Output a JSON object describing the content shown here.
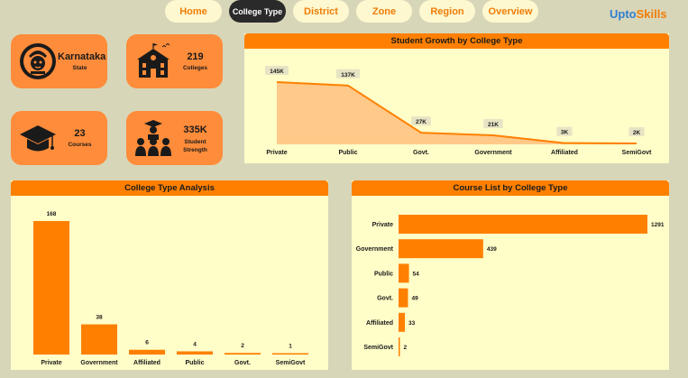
{
  "nav": [
    {
      "label": "Home",
      "active": false
    },
    {
      "label": "College Type",
      "active": true
    },
    {
      "label": "District",
      "active": false
    },
    {
      "label": "Zone",
      "active": false
    },
    {
      "label": "Region",
      "active": false
    },
    {
      "label": "Overview",
      "active": false
    }
  ],
  "brand": {
    "part1": "Upto",
    "part2": "Skills"
  },
  "kpis": {
    "state": {
      "value": "Karnataka",
      "label": "State",
      "icon": "karnataka-emblem-icon"
    },
    "colleges": {
      "value": "219",
      "label": "Colleges",
      "icon": "college-building-icon"
    },
    "courses": {
      "value": "23",
      "label": "Courses",
      "icon": "graduation-cap-icon"
    },
    "students": {
      "value": "335K",
      "label": "Student Strength",
      "icon": "students-group-icon"
    }
  },
  "colors": {
    "accent": "#ff8000",
    "card": "#ff8c3a",
    "panel": "#fffdc8",
    "area_fill": "#ffc98a",
    "background": "#d8d6b8"
  },
  "chart_data": [
    {
      "type": "area",
      "title": "Student Growth by College Type",
      "categories": [
        "Private",
        "Public",
        "Govt.",
        "Government",
        "Affiliated",
        "SemiGovt"
      ],
      "values": [
        145000,
        137000,
        27000,
        21000,
        3000,
        2000
      ],
      "data_labels": [
        "145K",
        "137K",
        "27K",
        "21K",
        "3K",
        "2K"
      ]
    },
    {
      "type": "bar",
      "title": "College Type Analysis",
      "categories": [
        "Private",
        "Government",
        "Affiliated",
        "Public",
        "Govt.",
        "SemiGovt"
      ],
      "values": [
        168,
        38,
        6,
        4,
        2,
        1
      ]
    },
    {
      "type": "bar",
      "orientation": "horizontal",
      "title": "Course List by College Type",
      "categories": [
        "Private",
        "Government",
        "Public",
        "Govt.",
        "Affiliated",
        "SemiGovt"
      ],
      "values": [
        1291,
        439,
        54,
        49,
        33,
        2
      ]
    }
  ]
}
